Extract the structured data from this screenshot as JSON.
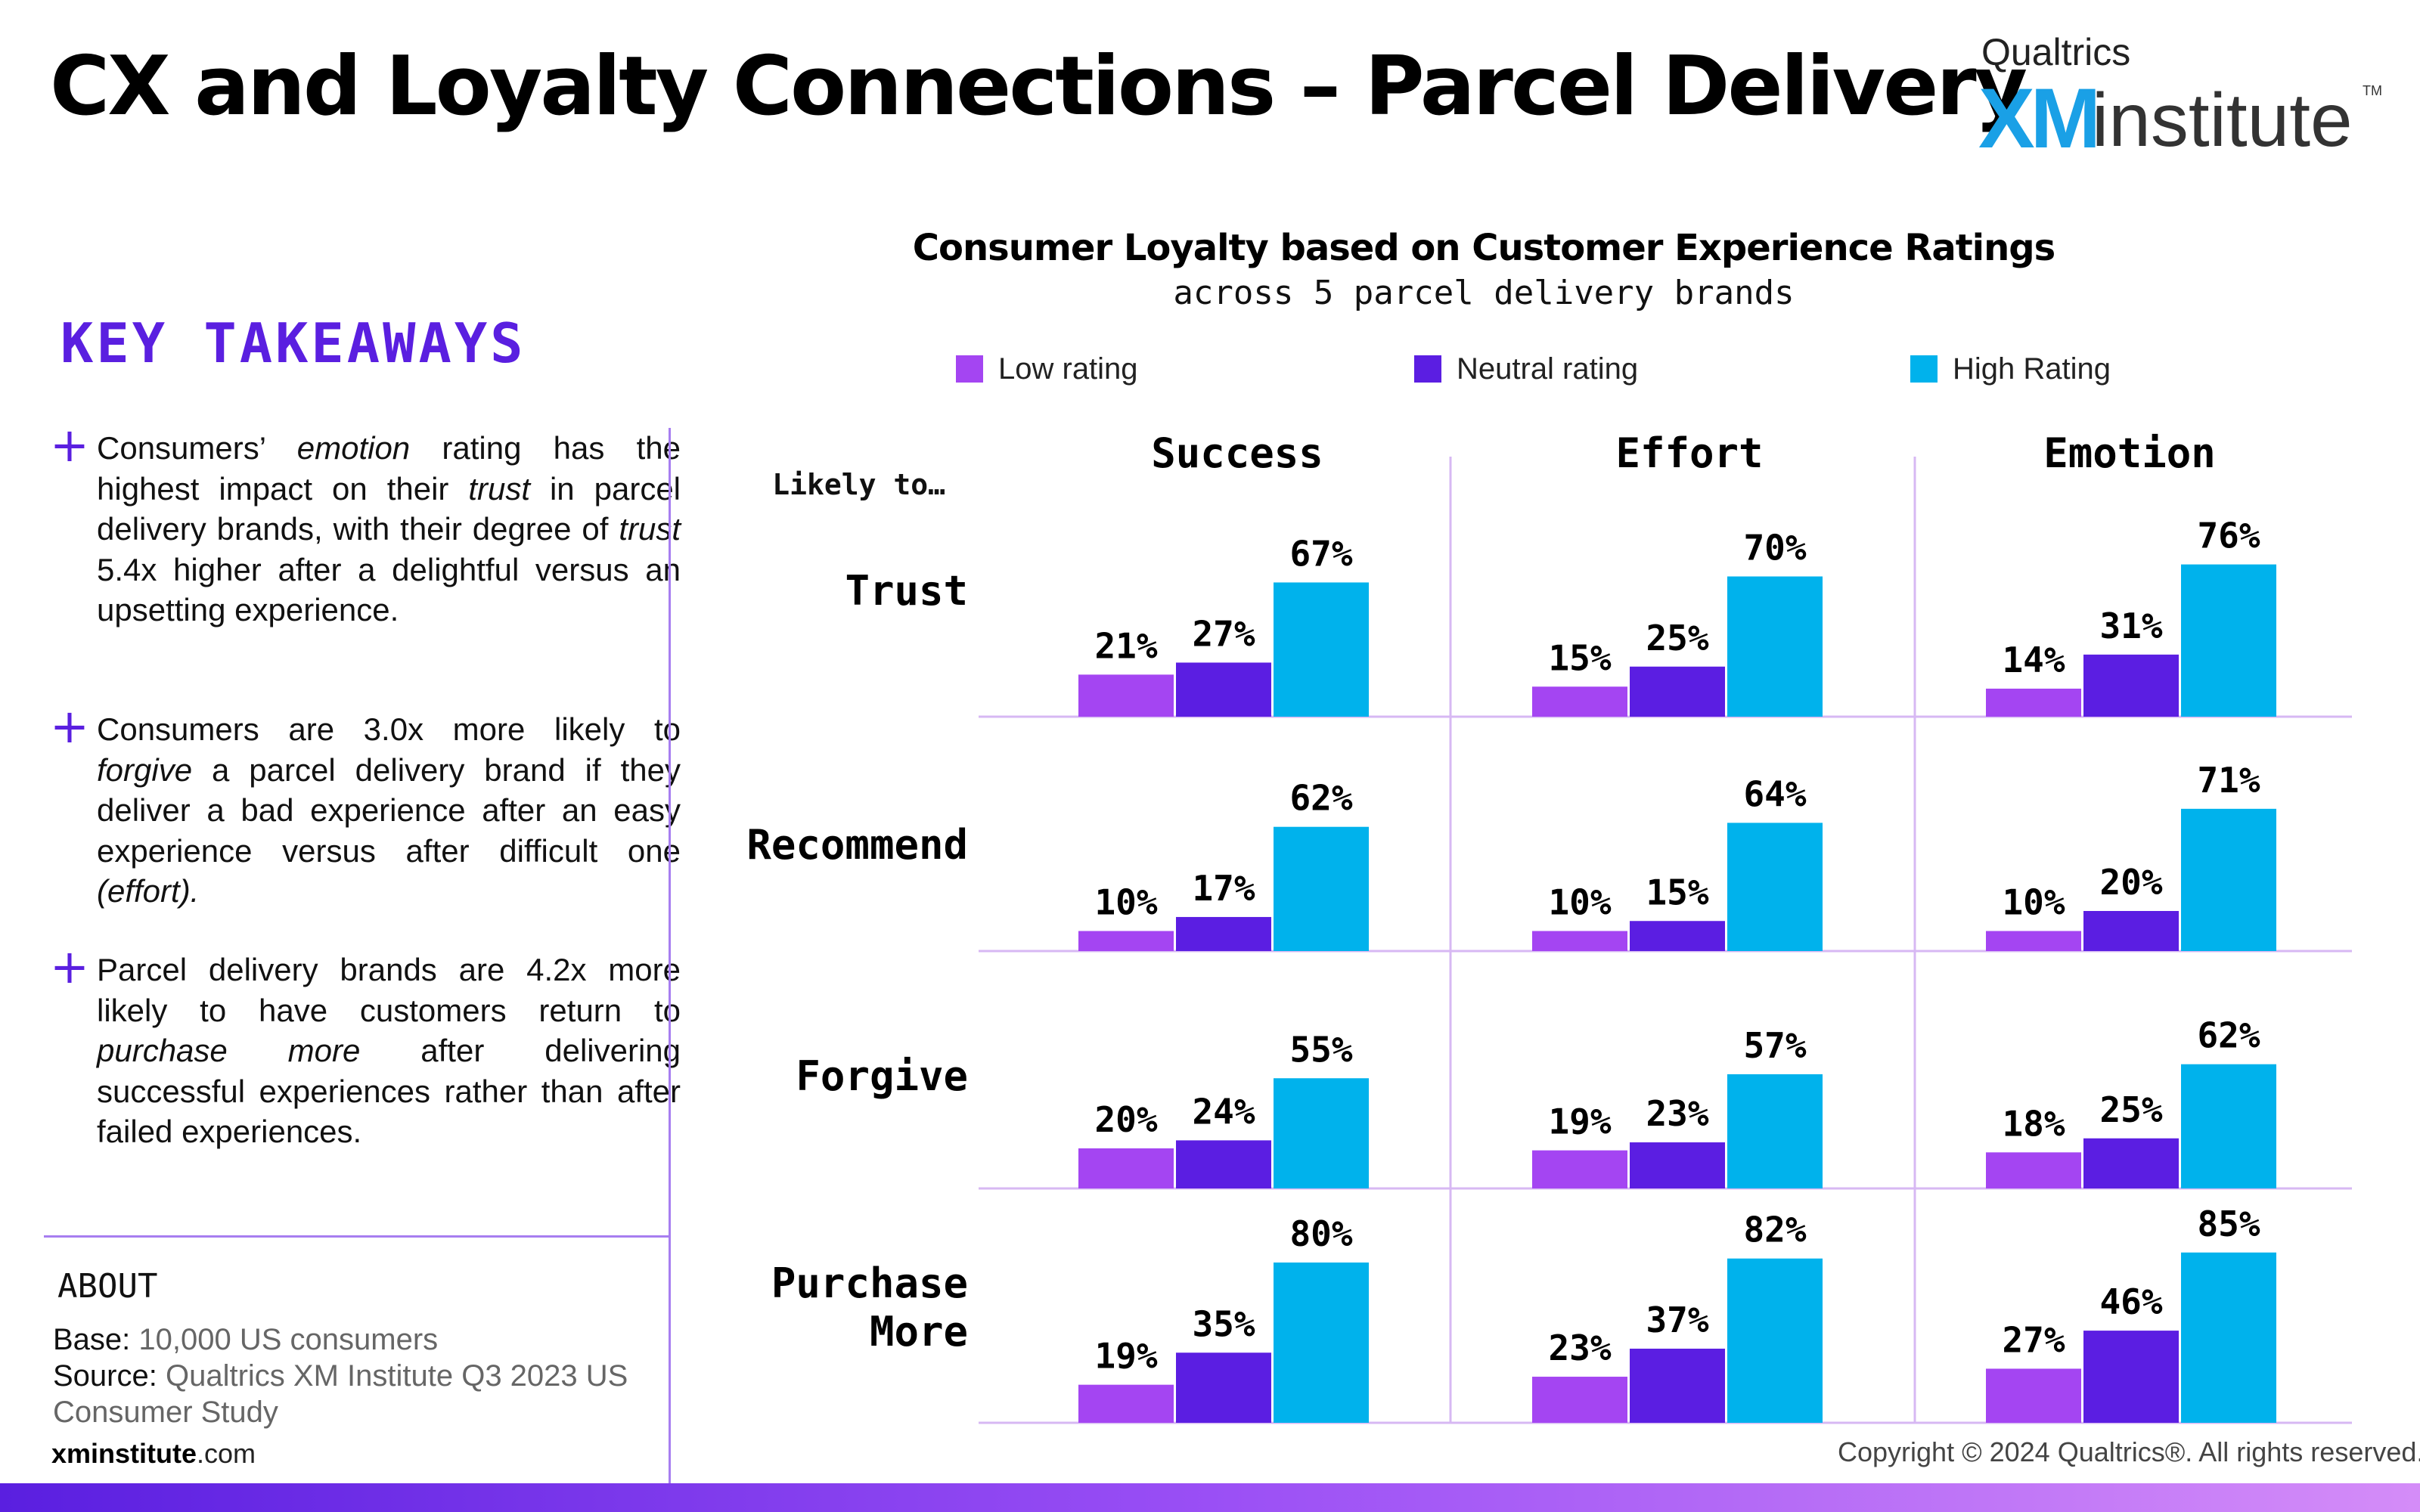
{
  "header": {
    "title": "CX and Loyalty Connections – Parcel Delivery",
    "logo_brand": "Qualtrics",
    "logo_xm": "XM",
    "logo_institute": "institute",
    "logo_tm": "TM"
  },
  "takeaways": {
    "heading": "KEY TAKEAWAYS",
    "items": [
      {
        "parts": [
          {
            "t": "Consumers’ "
          },
          {
            "t": "emotion",
            "i": true
          },
          {
            "t": " rating has the highest impact on their "
          },
          {
            "t": "trust",
            "i": true
          },
          {
            "t": " in parcel delivery brands, with their degree of "
          },
          {
            "t": "trust",
            "i": true
          },
          {
            "t": " 5.4x higher after a delightful versus an upsetting experience."
          }
        ]
      },
      {
        "parts": [
          {
            "t": "Consumers are 3.0x more likely to "
          },
          {
            "t": "forgive",
            "i": true
          },
          {
            "t": " a parcel delivery brand if they deliver a bad experience after an easy experience versus after difficult one "
          },
          {
            "t": "(effort).",
            "i": true
          }
        ]
      },
      {
        "parts": [
          {
            "t": "Parcel delivery brands are 4.2x more likely to have customers return to "
          },
          {
            "t": "purchase more",
            "i": true
          },
          {
            "t": " after delivering successful experiences rather than after failed experiences."
          }
        ]
      }
    ]
  },
  "about": {
    "heading": "ABOUT",
    "base_label": "Base:",
    "base_value": " 10,000 US consumers",
    "source_label": "Source:",
    "source_value_1": " Qualtrics XM Institute Q3 2023 US",
    "source_value_2": "Consumer Study"
  },
  "footer": {
    "site_bold": "xminstitute",
    "site_rest": ".com",
    "copyright": "Copyright © 2024 Qualtrics®. All rights reserved."
  },
  "colors": {
    "low": "#a445f2",
    "neutral": "#5b1ee2",
    "high": "#00b2ec",
    "accent": "#5a1fe0",
    "grid": "#d7b8f3"
  },
  "chart_data": {
    "type": "bar",
    "title": "Consumer Loyalty based on Customer Experience Ratings",
    "subtitle": "across 5 parcel delivery brands",
    "row_header": "Likely to…",
    "legend_placement": "top",
    "series": [
      {
        "name": "Low rating"
      },
      {
        "name": "Neutral rating"
      },
      {
        "name": "High Rating"
      }
    ],
    "columns": [
      "Success",
      "Effort",
      "Emotion"
    ],
    "rows": [
      {
        "label": [
          "Trust"
        ],
        "values": [
          [
            21,
            27,
            67
          ],
          [
            15,
            25,
            70
          ],
          [
            14,
            31,
            76
          ]
        ]
      },
      {
        "label": [
          "Recommend"
        ],
        "values": [
          [
            10,
            17,
            62
          ],
          [
            10,
            15,
            64
          ],
          [
            10,
            20,
            71
          ]
        ]
      },
      {
        "label": [
          "Forgive"
        ],
        "values": [
          [
            20,
            24,
            55
          ],
          [
            19,
            23,
            57
          ],
          [
            18,
            25,
            62
          ]
        ]
      },
      {
        "label": [
          "Purchase",
          "More"
        ],
        "values": [
          [
            19,
            35,
            80
          ],
          [
            23,
            37,
            82
          ],
          [
            27,
            46,
            85
          ]
        ]
      }
    ],
    "value_suffix": "%",
    "ylim": [
      0,
      100
    ]
  }
}
